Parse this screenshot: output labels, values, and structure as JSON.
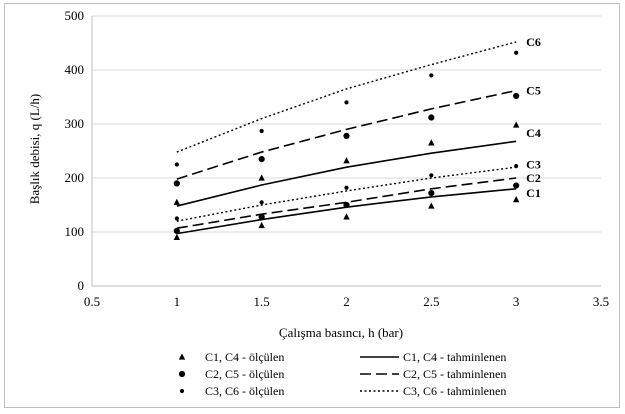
{
  "chart_data": {
    "type": "line",
    "title": "",
    "xlabel": "Çalışma basıncı, h (bar)",
    "ylabel": "Başlık debisi, q (L/h)",
    "xlim": [
      0.5,
      3.5
    ],
    "ylim": [
      0,
      500
    ],
    "x_ticks": [
      "0.5",
      "1",
      "1.5",
      "2",
      "2.5",
      "3",
      "3.5"
    ],
    "y_ticks": [
      "0",
      "100",
      "200",
      "300",
      "400",
      "500"
    ],
    "grid": "horizontal",
    "legend_placement": "bottom",
    "measured_series": [
      {
        "name": "C1, C4 - ölçülen",
        "marker": "triangle",
        "groups": [
          {
            "x": [
              1,
              1.5,
              2,
              2.5,
              3
            ],
            "y": [
              90,
              112,
              128,
              148,
              160
            ]
          },
          {
            "x": [
              1,
              1.5,
              2,
              2.5,
              3
            ],
            "y": [
              155,
              200,
              232,
              265,
              298
            ]
          }
        ]
      },
      {
        "name": "C2, C5 - ölçülen",
        "marker": "circle",
        "groups": [
          {
            "x": [
              1,
              1.5,
              2,
              2.5,
              3
            ],
            "y": [
              102,
              128,
              150,
              172,
              186
            ]
          },
          {
            "x": [
              1,
              1.5,
              2,
              2.5,
              3
            ],
            "y": [
              190,
              235,
              278,
              312,
              352
            ]
          }
        ]
      },
      {
        "name": "C3, C6 - ölçülen",
        "marker": "dot",
        "groups": [
          {
            "x": [
              1,
              1.5,
              2,
              2.5,
              3
            ],
            "y": [
              125,
              155,
              182,
              205,
              222
            ]
          },
          {
            "x": [
              1,
              1.5,
              2,
              2.5,
              3
            ],
            "y": [
              225,
              287,
              340,
              390,
              432
            ]
          }
        ]
      }
    ],
    "fit_series": [
      {
        "name": "C1, C4  - tahminlenen",
        "dash": "solid",
        "groups": [
          {
            "x": [
              1,
              1.5,
              2,
              2.5,
              3
            ],
            "y": [
              97,
              123,
              146,
              165,
              180
            ]
          },
          {
            "x": [
              1,
              1.5,
              2,
              2.5,
              3
            ],
            "y": [
              148,
              187,
              220,
              246,
              268
            ]
          }
        ]
      },
      {
        "name": "C2, C5  - tahminlenen",
        "dash": "dashed",
        "groups": [
          {
            "x": [
              1,
              1.5,
              2,
              2.5,
              3
            ],
            "y": [
              107,
              133,
              155,
              180,
              200
            ]
          },
          {
            "x": [
              1,
              1.5,
              2,
              2.5,
              3
            ],
            "y": [
              198,
              248,
              290,
              328,
              362
            ]
          }
        ]
      },
      {
        "name": "C3, C6  - tahminlenen",
        "dash": "dotted",
        "groups": [
          {
            "x": [
              1,
              1.5,
              2,
              2.5,
              3
            ],
            "y": [
              120,
              150,
              176,
              200,
              220
            ]
          },
          {
            "x": [
              1,
              1.5,
              2,
              2.5,
              3
            ],
            "y": [
              248,
              310,
              365,
              410,
              452
            ]
          }
        ]
      }
    ],
    "curve_labels": [
      {
        "text": "C6",
        "x": 3,
        "y": 452
      },
      {
        "text": "C5",
        "x": 3,
        "y": 362
      },
      {
        "text": "C4",
        "x": 3,
        "y": 283
      },
      {
        "text": "C3",
        "x": 3,
        "y": 225
      },
      {
        "text": "C2",
        "x": 3,
        "y": 200
      },
      {
        "text": "C1",
        "x": 3,
        "y": 172
      }
    ]
  }
}
